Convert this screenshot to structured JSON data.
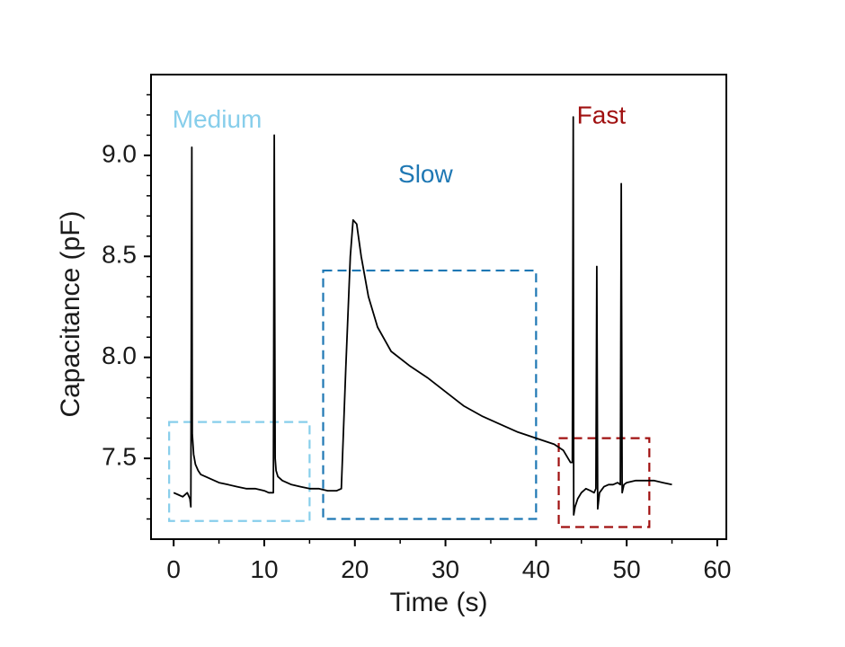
{
  "chart_data": {
    "type": "line",
    "title": "",
    "xlabel": "Time (s)",
    "ylabel": "Capacitance (pF)",
    "xlim": [
      -2.5,
      61
    ],
    "ylim": [
      7.1,
      9.4
    ],
    "xticks": [
      0,
      10,
      20,
      30,
      40,
      50,
      60
    ],
    "yticks": [
      7.5,
      8.0,
      8.5,
      9.0
    ],
    "xtick_labels": [
      "0",
      "10",
      "20",
      "30",
      "40",
      "50",
      "60"
    ],
    "ytick_labels": [
      "7.5",
      "8.0",
      "8.5",
      "9.0"
    ],
    "grid": false,
    "series": [
      {
        "color": "#000000",
        "x": [
          0,
          0.5,
          1.0,
          1.5,
          1.8,
          1.9,
          2.0,
          2.05,
          2.2,
          2.4,
          2.7,
          3.0,
          3.5,
          4.0,
          5,
          6,
          7,
          8,
          9,
          10,
          10.5,
          11.0,
          11.1,
          11.2,
          11.3,
          11.5,
          12,
          13,
          14,
          15,
          16,
          17,
          18,
          18.5,
          19.0,
          19.5,
          19.8,
          20.2,
          20.7,
          21.5,
          22.5,
          24,
          26,
          28,
          30,
          32,
          34,
          36,
          38,
          40,
          42,
          43,
          43.8,
          44.0,
          44.1,
          44.15,
          44.3,
          44.6,
          45,
          45.5,
          46,
          46.4,
          46.6,
          46.7,
          46.8,
          47.0,
          47.5,
          48,
          48.5,
          49.0,
          49.3,
          49.4,
          49.5,
          49.7,
          50,
          51,
          52,
          53,
          54,
          55
        ],
        "y": [
          7.33,
          7.32,
          7.31,
          7.33,
          7.3,
          7.26,
          9.04,
          7.62,
          7.52,
          7.47,
          7.44,
          7.42,
          7.41,
          7.4,
          7.38,
          7.37,
          7.36,
          7.35,
          7.35,
          7.34,
          7.33,
          7.33,
          9.1,
          7.5,
          7.44,
          7.41,
          7.39,
          7.37,
          7.36,
          7.35,
          7.35,
          7.34,
          7.34,
          7.35,
          7.95,
          8.5,
          8.68,
          8.66,
          8.5,
          8.3,
          8.15,
          8.03,
          7.96,
          7.9,
          7.83,
          7.76,
          7.71,
          7.67,
          7.63,
          7.6,
          7.57,
          7.54,
          7.48,
          7.48,
          9.19,
          7.22,
          7.26,
          7.3,
          7.33,
          7.35,
          7.34,
          7.33,
          7.35,
          8.45,
          7.25,
          7.33,
          7.36,
          7.37,
          7.37,
          7.38,
          7.37,
          8.86,
          7.33,
          7.37,
          7.38,
          7.39,
          7.39,
          7.39,
          7.38,
          7.37
        ]
      }
    ],
    "annotations": [
      {
        "text": "Medium",
        "color": "#87CEEB",
        "box": {
          "x0": -0.5,
          "x1": 15,
          "y0": 7.19,
          "y1": 7.68
        },
        "label": {
          "x": 4.8,
          "y": 9.17
        }
      },
      {
        "text": "Slow",
        "color": "#1F78B4",
        "box": {
          "x0": 16.5,
          "x1": 40,
          "y0": 7.2,
          "y1": 8.43
        },
        "label": {
          "x": 27.8,
          "y": 8.9
        }
      },
      {
        "text": "Fast",
        "color": "#A01010",
        "box": {
          "x0": 42.5,
          "x1": 52.5,
          "y0": 7.16,
          "y1": 7.6
        },
        "label": {
          "x": 47.2,
          "y": 9.19
        }
      }
    ]
  }
}
